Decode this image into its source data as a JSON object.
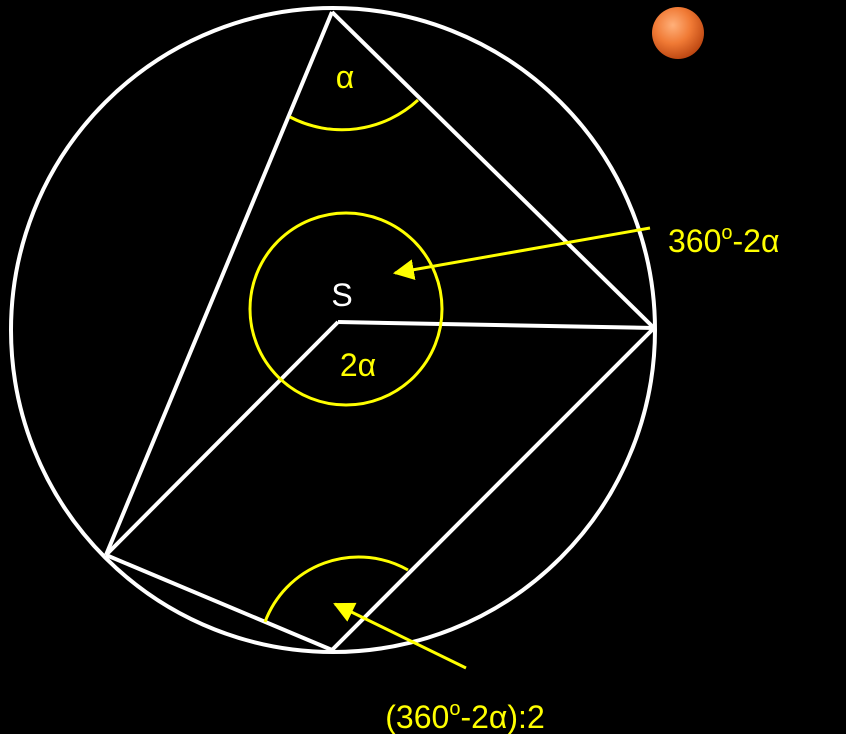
{
  "labels": {
    "inscribed_top": "α",
    "center": "S",
    "central_angle": "2α",
    "reflex_angle": {
      "parts": [
        "360",
        "o",
        "-2α"
      ]
    },
    "inscribed_bottom": {
      "parts": [
        "(360",
        "o",
        "-2α):2"
      ]
    }
  }
}
